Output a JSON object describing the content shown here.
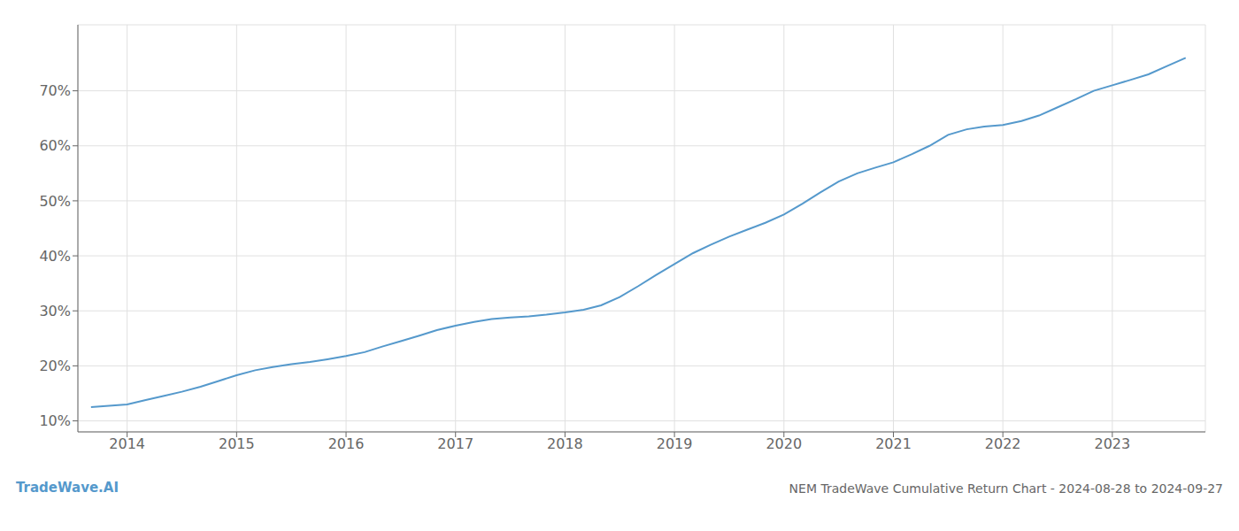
{
  "chart_data": {
    "type": "line",
    "title": "NEM TradeWave Cumulative Return Chart - 2024-08-28 to 2024-09-27",
    "annotations": [
      "TradeWave.AI"
    ],
    "color": "#5599cc",
    "grid": true,
    "x": [
      2013.67,
      2014.0,
      2014.17,
      2014.33,
      2014.5,
      2014.67,
      2014.83,
      2015.0,
      2015.17,
      2015.33,
      2015.5,
      2015.67,
      2015.83,
      2016.0,
      2016.17,
      2016.33,
      2016.5,
      2016.67,
      2016.83,
      2017.0,
      2017.17,
      2017.33,
      2017.5,
      2017.67,
      2017.83,
      2018.0,
      2018.17,
      2018.33,
      2018.5,
      2018.67,
      2018.83,
      2019.0,
      2019.17,
      2019.33,
      2019.5,
      2019.67,
      2019.83,
      2020.0,
      2020.17,
      2020.33,
      2020.5,
      2020.67,
      2020.83,
      2021.0,
      2021.17,
      2021.33,
      2021.5,
      2021.67,
      2021.83,
      2022.0,
      2022.17,
      2022.33,
      2022.5,
      2022.67,
      2022.83,
      2023.0,
      2023.17,
      2023.33,
      2023.5,
      2023.67
    ],
    "values": [
      12.5,
      13.0,
      13.8,
      14.5,
      15.3,
      16.2,
      17.2,
      18.3,
      19.2,
      19.8,
      20.3,
      20.7,
      21.2,
      21.8,
      22.5,
      23.5,
      24.5,
      25.5,
      26.5,
      27.3,
      28.0,
      28.5,
      28.8,
      29.0,
      29.3,
      29.7,
      30.2,
      31.0,
      32.5,
      34.5,
      36.5,
      38.5,
      40.5,
      42.0,
      43.5,
      44.8,
      46.0,
      47.5,
      49.5,
      51.5,
      53.5,
      55.0,
      56.0,
      57.0,
      58.5,
      60.0,
      62.0,
      63.0,
      63.5,
      63.8,
      64.5,
      65.5,
      67.0,
      68.5,
      70.0,
      71.0,
      72.0,
      73.0,
      74.5,
      76.0
    ],
    "xlim": [
      2013.55,
      2023.85
    ],
    "xticks": [
      2014,
      2015,
      2016,
      2017,
      2018,
      2019,
      2020,
      2021,
      2022,
      2023
    ],
    "ylim": [
      8,
      82
    ],
    "yticks": [
      {
        "value": 10,
        "label": "10%"
      },
      {
        "value": 20,
        "label": "20%"
      },
      {
        "value": 30,
        "label": "30%"
      },
      {
        "value": 40,
        "label": "40%"
      },
      {
        "value": 50,
        "label": "50%"
      },
      {
        "value": 60,
        "label": "60%"
      },
      {
        "value": 70,
        "label": "70%"
      }
    ]
  }
}
